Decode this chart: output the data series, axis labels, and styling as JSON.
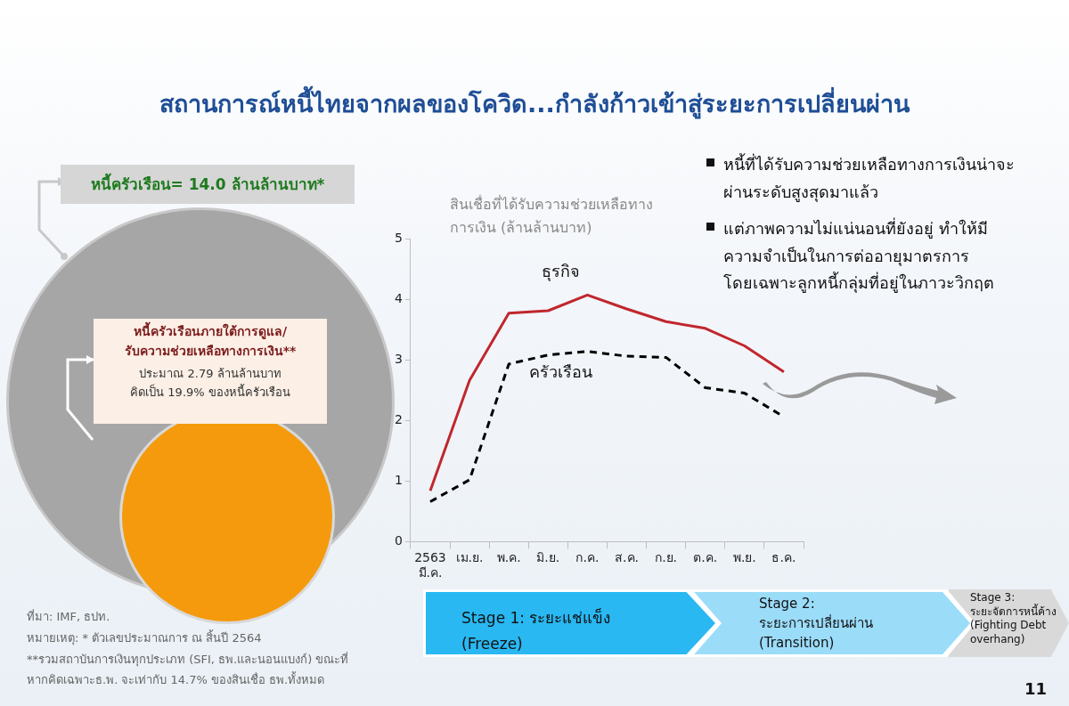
{
  "chart_data": {
    "type": "line",
    "title": "สถานการณ์หนี้ไทยจากผลของโควิด...กำลังก้าวเข้าสู่ระยะการเปลี่ยนผ่าน",
    "ylabel": "สินเชื่อที่ได้รับความช่วยเหลือทาง\nการเงิน (ล้านล้านบาท)",
    "categories": [
      "2563\nมี.ค.",
      "เม.ย.",
      "พ.ค.",
      "มิ.ย.",
      "ก.ค.",
      "ส.ค.",
      "ก.ย.",
      "ต.ค.",
      "พ.ย.",
      "ธ.ค."
    ],
    "series": [
      {
        "name": "ธุรกิจ",
        "color": "#c0272d",
        "line_style": "solid",
        "values": [
          0.84,
          2.66,
          3.77,
          3.81,
          4.07,
          3.84,
          3.63,
          3.52,
          3.23,
          2.8
        ]
      },
      {
        "name": "ครัวเรือน",
        "color": "#000000",
        "line_style": "dashed",
        "values": [
          0.66,
          1.02,
          2.93,
          3.08,
          3.14,
          3.06,
          3.04,
          2.54,
          2.45,
          2.06
        ]
      }
    ],
    "ylim": [
      0,
      5
    ],
    "yticks": [
      0,
      1,
      2,
      3,
      4,
      5
    ],
    "grid": false,
    "legend": false,
    "marker": "none",
    "annotations": [
      "หนี้ครัวเรือน= 14.0 ล้านล้านบาท*",
      "หนี้ครัวเรือนภายใต้การดูแล/\nรับความช่วยเหลือทางการเงิน**",
      "ประมาณ 2.79 ล้านล้านบาท\nคิดเป็น 19.9% ของหนี้ครัวเรือน",
      "หนี้ที่ได้รับความช่วยเหลือทางการเงินน่าจะ\nผ่านระดับสูงสุดมาแล้ว",
      "แต่ภาพความไม่แน่นอนที่ยังอยู่ ทำให้มี\nความจำเป็นในการต่ออายุมาตรการ\nโดยเฉพาะลูกหนี้กลุ่มที่อยู่ในภาวะวิกฤต",
      "Stage 1: ระยะแช่แข็ง\n(Freeze)",
      "Stage 2:\nระยะการเปลี่ยนผ่าน\n(Transition)",
      "Stage 3:\nระยะจัดการหนี้ค้าง\n(Fighting Debt\noverhang)",
      "ที่มา: IMF, ธปท.",
      "หมายเหตุ: * ตัวเลขประมาณการ ณ สิ้นปี 2564",
      "**รวมสถาบันการเงินทุกประเภท (SFI, ธพ.และนอนแบงก์) ขณะที่\nหากคิดเฉพาะธ.พ. จะเท่ากับ 14.7% ของสินเชื่อ ธพ.ทั้งหมด",
      "11"
    ]
  }
}
